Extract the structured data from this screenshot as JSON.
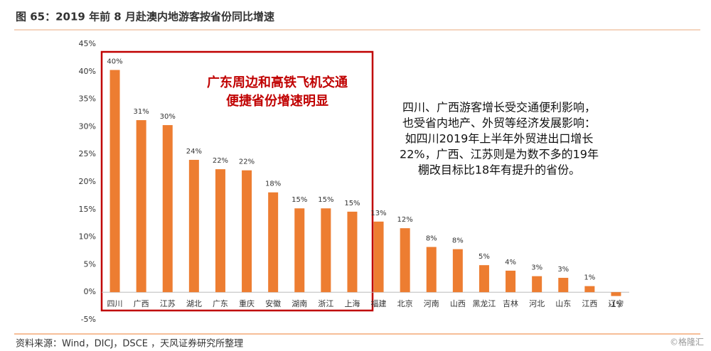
{
  "chart_data": {
    "type": "bar",
    "title": "图 65：2019 年前 8 月赴澳内地游客按省份同比增速",
    "source": "资料来源：Wind，DICJ，DSCE ，天风证券研究所整理",
    "watermark": "©格隆汇",
    "categories": [
      "四川",
      "广西",
      "江苏",
      "湖北",
      "广东",
      "重庆",
      "安徽",
      "湖南",
      "浙江",
      "上海",
      "福建",
      "北京",
      "河南",
      "山西",
      "黑龙江",
      "吉林",
      "河北",
      "山东",
      "江西",
      "辽宁"
    ],
    "values": [
      40.3,
      31.2,
      30.3,
      24,
      22.3,
      22.1,
      18.1,
      15.2,
      15.2,
      14.6,
      12.8,
      11.6,
      8.2,
      7.8,
      4.9,
      3.9,
      2.9,
      2.6,
      1.1,
      -0.7
    ],
    "value_labels": [
      "40%",
      "31%",
      "30%",
      "24%",
      "22%",
      "22%",
      "18%",
      "15%",
      "15%",
      "15%",
      "13%",
      "12%",
      "8%",
      "8%",
      "5%",
      "4%",
      "3%",
      "3%",
      "1%",
      "-1%"
    ],
    "color": "#ed7d31",
    "ylim": [
      -5,
      45
    ],
    "yticks": [
      {
        "value": -5,
        "label": "-5%"
      },
      {
        "value": 0,
        "label": "0%"
      },
      {
        "value": 5,
        "label": "5%"
      },
      {
        "value": 10,
        "label": "10%"
      },
      {
        "value": 15,
        "label": "15%"
      },
      {
        "value": 20,
        "label": "20%"
      },
      {
        "value": 25,
        "label": "25%"
      },
      {
        "value": 30,
        "label": "30%"
      },
      {
        "value": 35,
        "label": "35%"
      },
      {
        "value": 40,
        "label": "40%"
      },
      {
        "value": 45,
        "label": "45%"
      }
    ],
    "grid": false,
    "annotations": {
      "highlight": [
        "广东周边和高铁飞机交通",
        "便捷省份增速明显"
      ],
      "note": [
        "四川、广西游客增长受交通便利影响，",
        "也受省内地产、外贸等经济发展影响：",
        "如四川2019年上半年外贸进出口增长",
        "22%，广西、江苏则是为数不多的19年",
        "棚改目标比18年有提升的省份。"
      ]
    }
  }
}
